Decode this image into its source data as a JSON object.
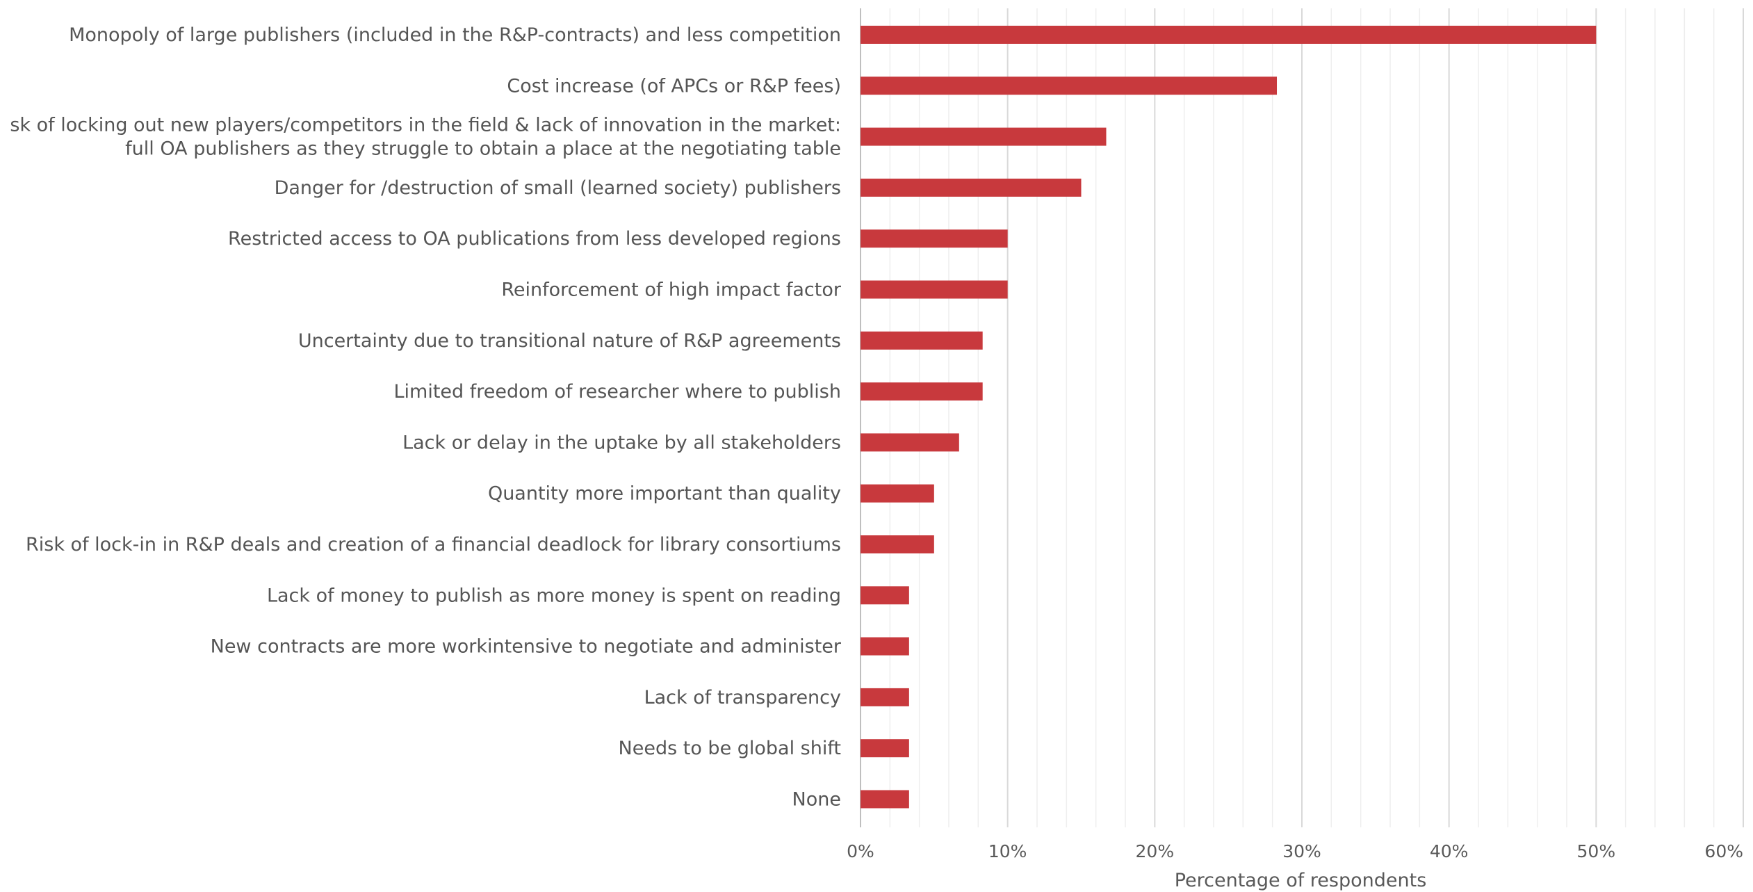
{
  "chart_data": {
    "type": "bar",
    "orientation": "horizontal",
    "categories": [
      [
        "Monopoly of large publishers (included in the R&P-contracts) and less competition"
      ],
      [
        "Cost increase (of APCs or R&P fees)"
      ],
      [
        "sk of locking out new players/competitors in the field & lack of innovation in the market:",
        "full OA publishers as they struggle to obtain a place at the negotiating table"
      ],
      [
        "Danger for /destruction of small (learned society) publishers"
      ],
      [
        "Restricted access to OA publications from less developed regions"
      ],
      [
        "Reinforcement of high impact factor"
      ],
      [
        "Uncertainty due to transitional nature of R&P agreements"
      ],
      [
        "Limited freedom of researcher where to publish"
      ],
      [
        "Lack or delay in the uptake by all stakeholders"
      ],
      [
        "Quantity more important than quality"
      ],
      [
        "Risk of lock-in in R&P deals and creation of a financial deadlock for library consortiums"
      ],
      [
        "Lack of money to publish as more money is spent on reading"
      ],
      [
        "New contracts are more workintensive to negotiate and administer"
      ],
      [
        "Lack of transparency"
      ],
      [
        "Needs to be global shift"
      ],
      [
        "None"
      ]
    ],
    "values": [
      50,
      28.3,
      16.7,
      15,
      10,
      10,
      8.3,
      8.3,
      6.7,
      5,
      5,
      3.3,
      3.3,
      3.3,
      3.3,
      3.3
    ],
    "xlim": [
      0,
      60
    ],
    "x_ticks": [
      "0%",
      "10%",
      "20%",
      "30%",
      "40%",
      "50%",
      "60%"
    ],
    "xlabel": "Percentage of respondents",
    "ylabel": "",
    "title": "",
    "bar_color": "#c8393d",
    "gridline_color": "#d9d9d9",
    "minor_gridline_color": "#eeeeee",
    "grid": true,
    "legend": "none"
  }
}
